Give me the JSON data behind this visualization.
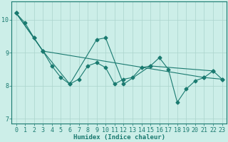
{
  "xlabel": "Humidex (Indice chaleur)",
  "background_color": "#cceee8",
  "line_color": "#1a7a70",
  "grid_color": "#aad4cc",
  "xlim": [
    -0.5,
    23.5
  ],
  "ylim": [
    6.85,
    10.55
  ],
  "yticks": [
    7,
    8,
    9,
    10
  ],
  "xticks": [
    0,
    1,
    2,
    3,
    4,
    5,
    6,
    7,
    8,
    9,
    10,
    11,
    12,
    13,
    14,
    15,
    16,
    17,
    18,
    19,
    20,
    21,
    22,
    23
  ],
  "line1_x": [
    0,
    1,
    2,
    3,
    4,
    5,
    6,
    7,
    8,
    9,
    10,
    11,
    12,
    13,
    14,
    15,
    16,
    17,
    18,
    19,
    20,
    21,
    22,
    23
  ],
  "line1_y": [
    10.2,
    9.9,
    9.45,
    9.05,
    8.6,
    8.25,
    8.05,
    8.2,
    8.6,
    8.7,
    8.55,
    8.05,
    8.2,
    8.25,
    8.55,
    8.6,
    8.85,
    8.5,
    7.5,
    7.9,
    8.15,
    8.25,
    8.45,
    8.2
  ],
  "line2_x": [
    0,
    2,
    3,
    6,
    9,
    10,
    12,
    15,
    22
  ],
  "line2_y": [
    10.2,
    9.45,
    9.05,
    8.05,
    9.4,
    9.45,
    8.05,
    8.6,
    8.45
  ],
  "line3_x": [
    0,
    3,
    21,
    23
  ],
  "line3_y": [
    10.2,
    9.05,
    8.25,
    8.2
  ],
  "marker_size": 2.5,
  "line_width": 0.8,
  "font_family": "monospace",
  "xlabel_fontsize": 6.5,
  "tick_fontsize": 6.0,
  "ylabel_fontsize": 6.0
}
